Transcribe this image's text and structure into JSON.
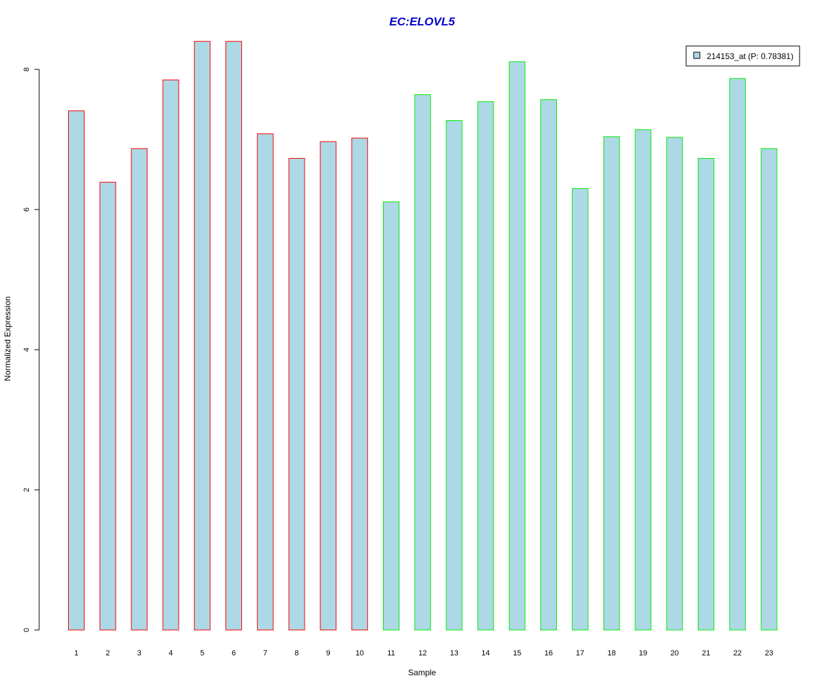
{
  "chart_data": {
    "type": "bar",
    "title": "EC:ELOVL5",
    "xlabel": "Sample",
    "ylabel": "Normalized Expression",
    "categories": [
      "1",
      "2",
      "3",
      "4",
      "5",
      "6",
      "7",
      "8",
      "9",
      "10",
      "11",
      "12",
      "13",
      "14",
      "15",
      "16",
      "17",
      "18",
      "19",
      "20",
      "21",
      "22",
      "23"
    ],
    "series": [
      {
        "name": "214153_at (P: 0.78381)",
        "values": [
          7.41,
          6.39,
          6.87,
          7.85,
          8.4,
          8.4,
          7.08,
          6.73,
          6.97,
          7.02,
          6.11,
          7.64,
          7.27,
          7.54,
          8.11,
          7.57,
          6.3,
          7.04,
          7.14,
          7.03,
          6.73,
          7.87,
          6.87
        ]
      }
    ],
    "group_border_colors": [
      "#ff0000",
      "#ff0000",
      "#ff0000",
      "#ff0000",
      "#ff0000",
      "#ff0000",
      "#ff0000",
      "#ff0000",
      "#ff0000",
      "#ff0000",
      "#00ee00",
      "#00ee00",
      "#00ee00",
      "#00ee00",
      "#00ee00",
      "#00ee00",
      "#00ee00",
      "#00ee00",
      "#00ee00",
      "#00ee00",
      "#00ee00",
      "#00ee00",
      "#00ee00"
    ],
    "y_ticks": [
      0,
      2,
      4,
      6,
      8
    ],
    "ylim": [
      0,
      8.4
    ],
    "grid": false,
    "legend_position": "top-right",
    "colors": {
      "bar_fill": "#add8e6",
      "title": "#0000cd",
      "axis": "#000000"
    }
  }
}
